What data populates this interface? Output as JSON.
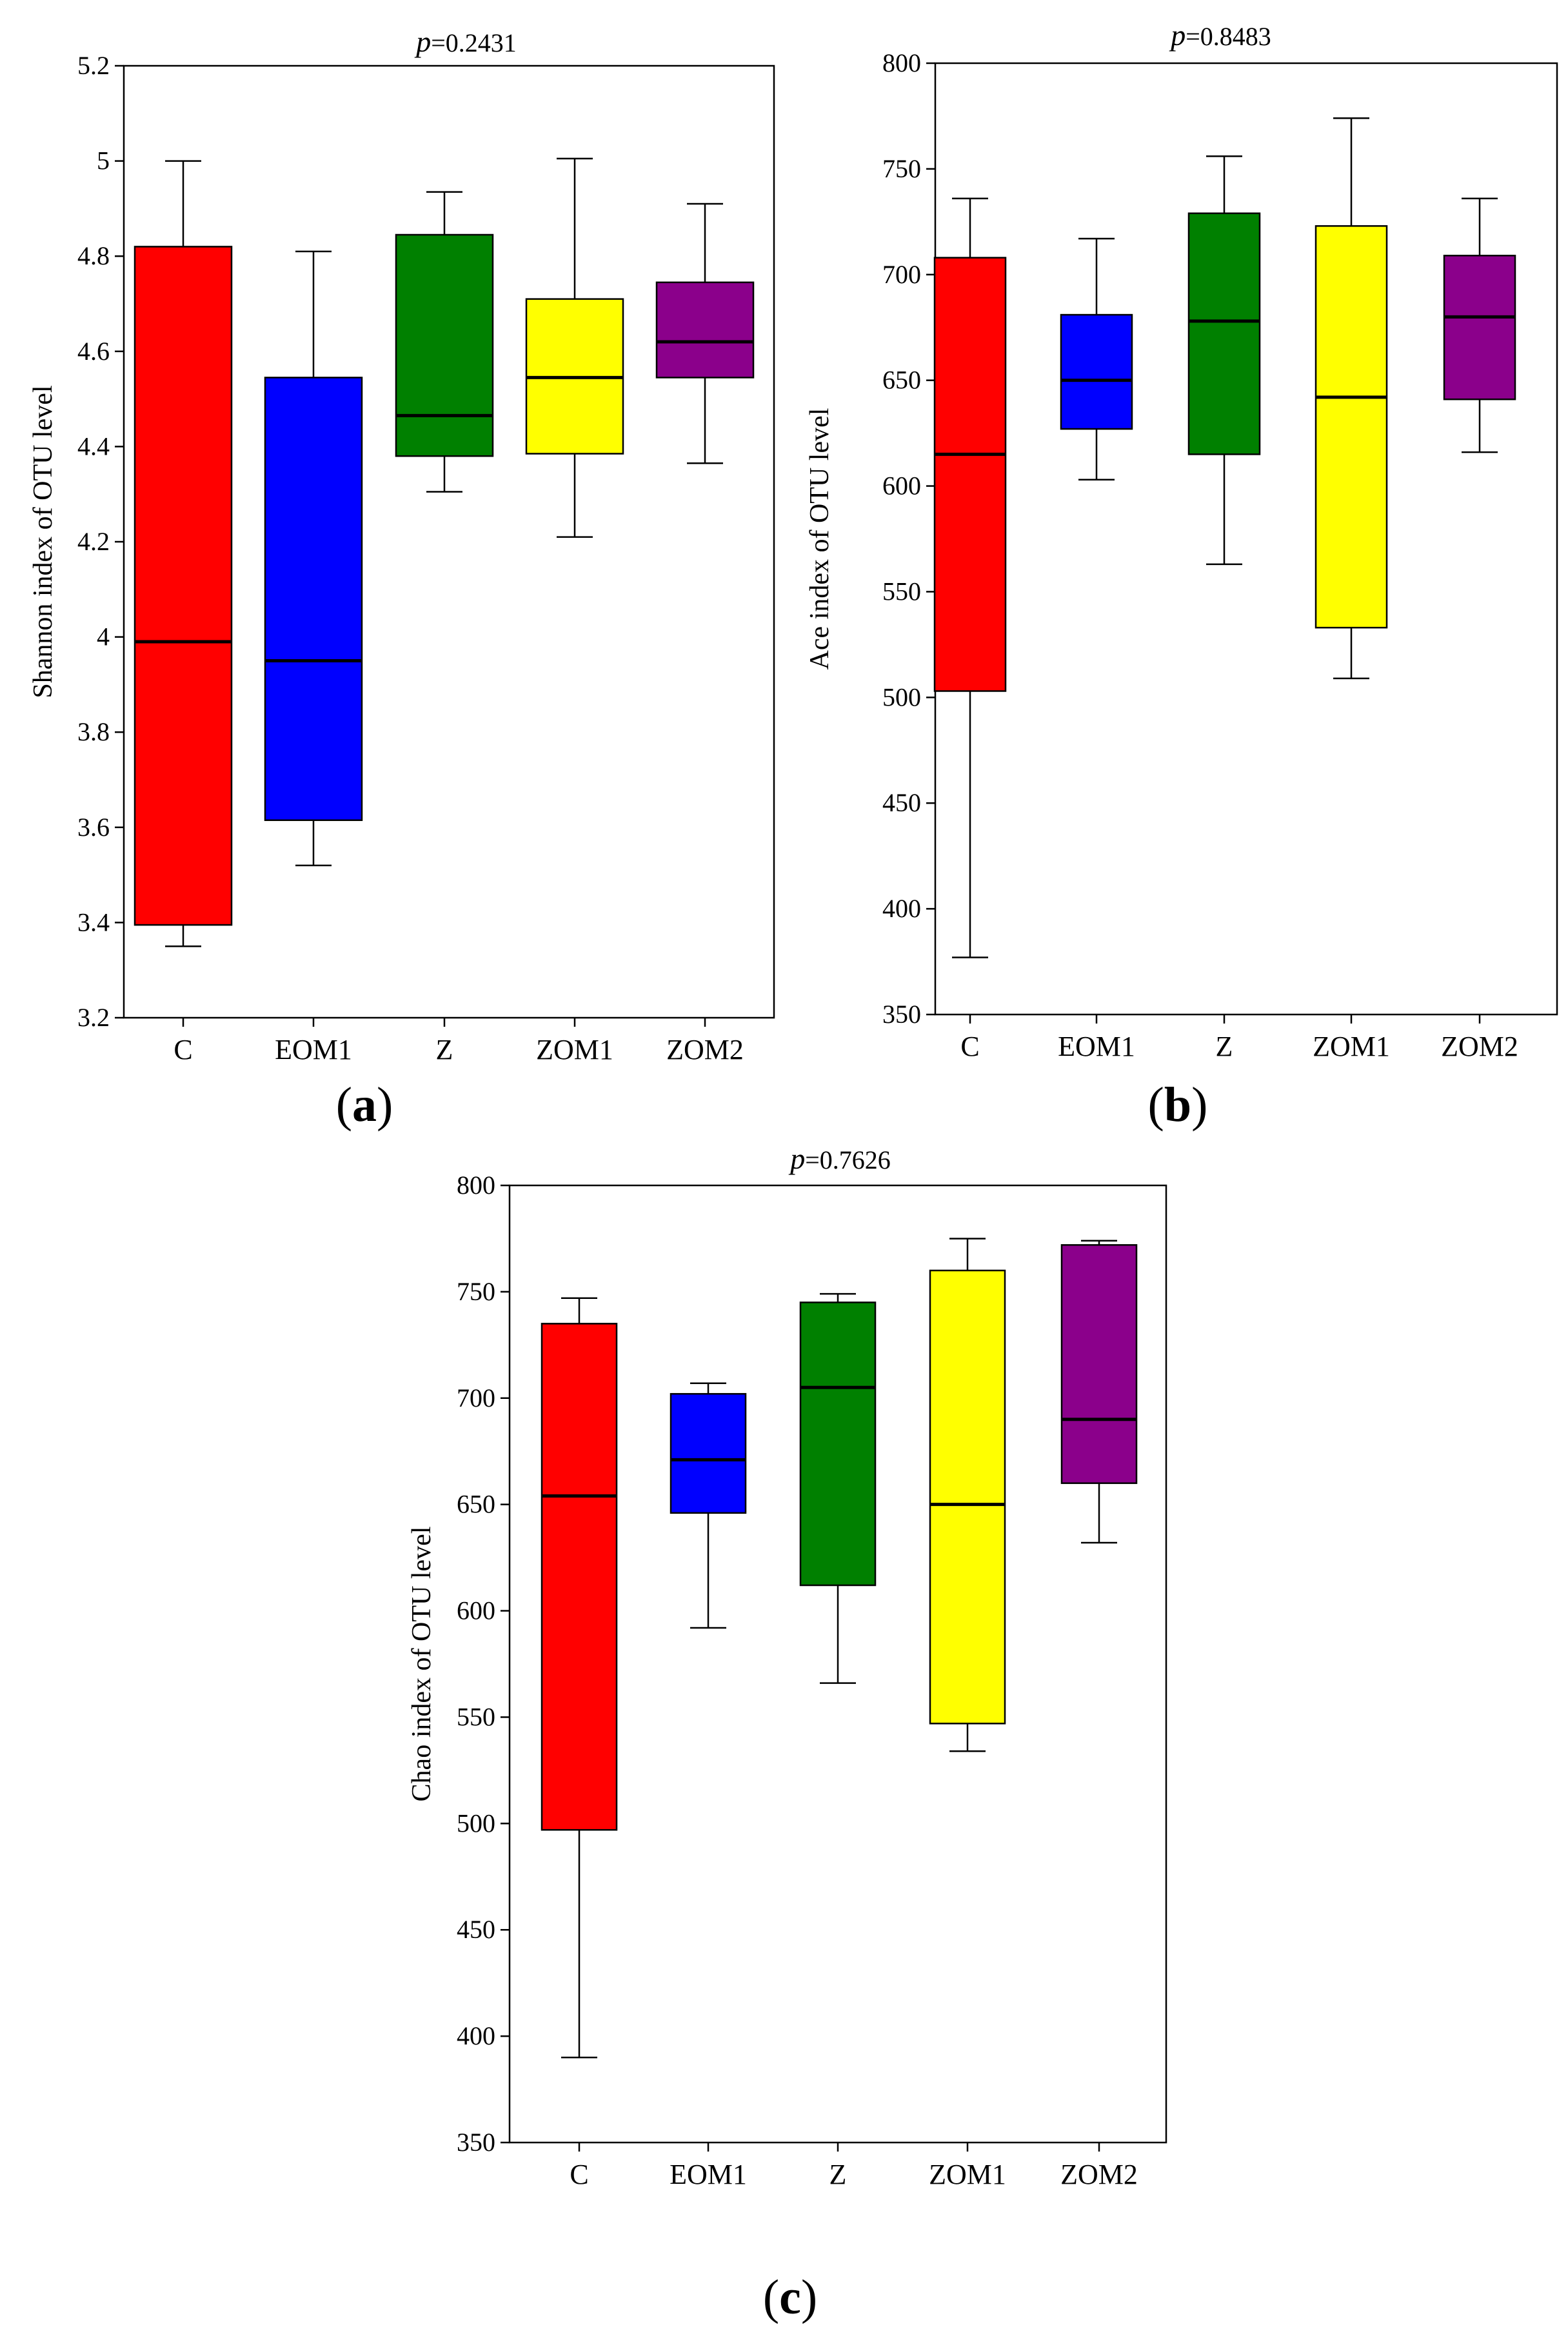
{
  "colors": {
    "C": "#ff0000",
    "EOM1": "#0000ff",
    "Z": "#008000",
    "ZOM1": "#ffff00",
    "ZOM2": "#8b008b"
  },
  "chart_data": [
    {
      "type": "box",
      "panel": "a",
      "title_prefix": "p",
      "title_value": "=0.2431",
      "ylabel": "Shannon index of OTU level",
      "xlabel": "",
      "ylim": [
        3.2,
        5.2
      ],
      "yticks": [
        3.2,
        3.4,
        3.6,
        3.8,
        4,
        4.2,
        4.4,
        4.6,
        4.8,
        5,
        5.2
      ],
      "ytick_labels": [
        "3.2",
        "3.4",
        "3.6",
        "3.8",
        "4",
        "4.2",
        "4.4",
        "4.6",
        "4.8",
        "5",
        "5.2"
      ],
      "categories": [
        "C",
        "EOM1",
        "Z",
        "ZOM1",
        "ZOM2"
      ],
      "boxes": [
        {
          "name": "C",
          "min": 3.35,
          "q1": 3.395,
          "median": 3.99,
          "q3": 4.82,
          "max": 5.0
        },
        {
          "name": "EOM1",
          "min": 3.52,
          "q1": 3.615,
          "median": 3.95,
          "q3": 4.545,
          "max": 4.81
        },
        {
          "name": "Z",
          "min": 4.305,
          "q1": 4.38,
          "median": 4.465,
          "q3": 4.845,
          "max": 4.935
        },
        {
          "name": "ZOM1",
          "min": 4.21,
          "q1": 4.385,
          "median": 4.545,
          "q3": 4.71,
          "max": 5.005
        },
        {
          "name": "ZOM2",
          "min": 4.365,
          "q1": 4.545,
          "median": 4.62,
          "q3": 4.745,
          "max": 4.91
        }
      ]
    },
    {
      "type": "box",
      "panel": "b",
      "title_prefix": "p",
      "title_value": "=0.8483",
      "ylabel": "Ace index of OTU level",
      "xlabel": "",
      "ylim": [
        350,
        800
      ],
      "yticks": [
        350,
        400,
        450,
        500,
        550,
        600,
        650,
        700,
        750,
        800
      ],
      "ytick_labels": [
        "350",
        "400",
        "450",
        "500",
        "550",
        "600",
        "650",
        "700",
        "750",
        "800"
      ],
      "categories": [
        "C",
        "EOM1",
        "Z",
        "ZOM1",
        "ZOM2"
      ],
      "boxes": [
        {
          "name": "C",
          "min": 377,
          "q1": 503,
          "median": 615,
          "q3": 708,
          "max": 736
        },
        {
          "name": "EOM1",
          "min": 603,
          "q1": 627,
          "median": 650,
          "q3": 681,
          "max": 717
        },
        {
          "name": "Z",
          "min": 563,
          "q1": 615,
          "median": 678,
          "q3": 729,
          "max": 756
        },
        {
          "name": "ZOM1",
          "min": 509,
          "q1": 533,
          "median": 642,
          "q3": 723,
          "max": 774
        },
        {
          "name": "ZOM2",
          "min": 616,
          "q1": 641,
          "median": 680,
          "q3": 709,
          "max": 736
        }
      ]
    },
    {
      "type": "box",
      "panel": "c",
      "title_prefix": "p",
      "title_value": "=0.7626",
      "ylabel": "Chao index of OTU level",
      "xlabel": "",
      "ylim": [
        350,
        800
      ],
      "yticks": [
        350,
        400,
        450,
        500,
        550,
        600,
        650,
        700,
        750,
        800
      ],
      "ytick_labels": [
        "350",
        "400",
        "450",
        "500",
        "550",
        "600",
        "650",
        "700",
        "750",
        "800"
      ],
      "categories": [
        "C",
        "EOM1",
        "Z",
        "ZOM1",
        "ZOM2"
      ],
      "boxes": [
        {
          "name": "C",
          "min": 390,
          "q1": 497,
          "median": 654,
          "q3": 735,
          "max": 747
        },
        {
          "name": "EOM1",
          "min": 592,
          "q1": 646,
          "median": 671,
          "q3": 702,
          "max": 707
        },
        {
          "name": "Z",
          "min": 566,
          "q1": 612,
          "median": 705,
          "q3": 745,
          "max": 749
        },
        {
          "name": "ZOM1",
          "min": 534,
          "q1": 547,
          "median": 650,
          "q3": 760,
          "max": 775
        },
        {
          "name": "ZOM2",
          "min": 632,
          "q1": 660,
          "median": 690,
          "q3": 772,
          "max": 774
        }
      ]
    }
  ],
  "panel_labels": [
    "a",
    "b",
    "c"
  ]
}
